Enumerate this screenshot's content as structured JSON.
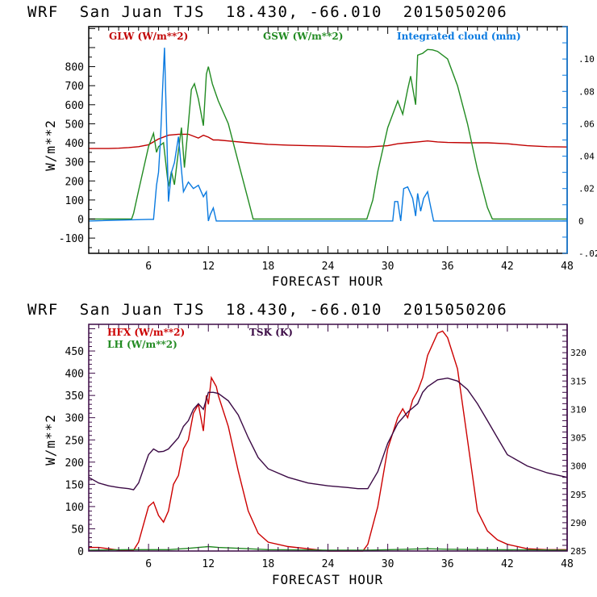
{
  "titles": [
    "WRF  San Juan TJS  18.430, -66.010  2015050206",
    "WRF  San Juan TJS  18.430, -66.010  2015050206"
  ],
  "chart_data": [
    {
      "type": "line",
      "title": "WRF  San Juan TJS  18.430, -66.010  2015050206",
      "xlabel": "FORECAST HOUR",
      "ylabel": "W/m**2",
      "xlim": [
        0,
        48
      ],
      "ylim": [
        -180,
        1010
      ],
      "xticks": [
        6,
        12,
        18,
        24,
        30,
        36,
        42,
        48
      ],
      "yticks": [
        -100,
        0,
        100,
        200,
        300,
        400,
        500,
        600,
        700,
        800
      ],
      "y2label": "",
      "y2lim": [
        -0.02,
        0.12
      ],
      "y2ticks": [
        ".10",
        ".08",
        ".06",
        ".04",
        ".02",
        "0",
        "-.02"
      ],
      "y2tick_values": [
        0.1,
        0.08,
        0.06,
        0.04,
        0.02,
        0,
        -0.02
      ],
      "axis_color": "#0a7ae0",
      "series": [
        {
          "name": "GLW (W/m**2)",
          "color": "#c00000",
          "axis": "left",
          "x": [
            0,
            2,
            3,
            4,
            5,
            6,
            7,
            8,
            9,
            10,
            11,
            11.5,
            12,
            12.5,
            13,
            14,
            16,
            18,
            20,
            22,
            24,
            26,
            28,
            30,
            31,
            32,
            33,
            34,
            35,
            36,
            38,
            40,
            42,
            44,
            46,
            48
          ],
          "y": [
            370,
            370,
            372,
            375,
            380,
            390,
            420,
            440,
            445,
            445,
            425,
            440,
            430,
            415,
            415,
            410,
            400,
            392,
            388,
            385,
            383,
            380,
            378,
            385,
            395,
            400,
            405,
            410,
            405,
            402,
            400,
            400,
            395,
            385,
            380,
            378
          ]
        },
        {
          "name": "GSW (W/m**2)",
          "color": "#228b22",
          "axis": "left",
          "x": [
            0,
            4.3,
            4.5,
            5,
            6,
            6.5,
            6.8,
            7,
            7.5,
            8,
            8.3,
            8.6,
            9,
            9.3,
            9.6,
            10,
            10.3,
            10.6,
            11,
            11.5,
            11.8,
            12,
            12.4,
            12.8,
            13,
            14,
            15,
            16,
            16.5,
            17,
            27.9,
            28.5,
            29,
            30,
            31,
            31.5,
            32,
            32.3,
            32.8,
            33,
            33.5,
            34,
            34.5,
            35,
            36,
            37,
            38,
            39,
            40,
            40.5,
            48
          ],
          "y": [
            0,
            0,
            30,
            150,
            380,
            450,
            350,
            380,
            400,
            170,
            250,
            180,
            360,
            480,
            270,
            500,
            680,
            710,
            630,
            490,
            760,
            800,
            710,
            650,
            620,
            500,
            300,
            100,
            0,
            0,
            0,
            100,
            250,
            480,
            620,
            550,
            680,
            750,
            600,
            860,
            870,
            890,
            888,
            880,
            840,
            700,
            500,
            260,
            60,
            0,
            0
          ]
        },
        {
          "name": "Integrated cloud (mm)",
          "color": "#0a7ae0",
          "axis": "right",
          "x": [
            0,
            6,
            6.5,
            6.8,
            7,
            7.2,
            7.4,
            7.6,
            7.8,
            8,
            8.3,
            8.6,
            9,
            9.5,
            10,
            10.5,
            11,
            11.5,
            11.8,
            12,
            12.2,
            12.5,
            12.8,
            13,
            30.5,
            30.7,
            31,
            31.3,
            31.6,
            32,
            32.5,
            32.8,
            33,
            33.3,
            33.6,
            34,
            34.3,
            34.6,
            35,
            48
          ],
          "y": [
            0,
            0.001,
            0.001,
            0.022,
            0.03,
            0.05,
            0.08,
            0.107,
            0.06,
            0.012,
            0.03,
            0.036,
            0.052,
            0.018,
            0.024,
            0.02,
            0.022,
            0.015,
            0.018,
            0,
            0.004,
            0.008,
            0,
            0,
            0,
            0.012,
            0.012,
            0,
            0.02,
            0.021,
            0.014,
            0.003,
            0.017,
            0.006,
            0.014,
            0.018,
            0.009,
            0.0,
            0,
            0
          ]
        }
      ],
      "legend_location": "top"
    },
    {
      "type": "line",
      "title": "WRF  San Juan TJS  18.430, -66.010  2015050206",
      "xlabel": "FORECAST HOUR",
      "ylabel": "W/m**2",
      "xlim": [
        0,
        48
      ],
      "ylim": [
        0,
        510
      ],
      "xticks": [
        6,
        12,
        18,
        24,
        30,
        36,
        42,
        48
      ],
      "yticks": [
        0,
        50,
        100,
        150,
        200,
        250,
        300,
        350,
        400,
        450
      ],
      "y2label": "",
      "y2lim": [
        285,
        325
      ],
      "y2ticks": [
        "320",
        "315",
        "310",
        "305",
        "300",
        "295",
        "290",
        "285"
      ],
      "y2tick_values": [
        320,
        315,
        310,
        305,
        300,
        295,
        290,
        285
      ],
      "axis_color": "#3b0a45",
      "series": [
        {
          "name": "HFX (W/m**2)",
          "color": "#cc0000",
          "axis": "left",
          "x": [
            0,
            1,
            2,
            3,
            4.5,
            5,
            6,
            6.5,
            7,
            7.5,
            8,
            8.5,
            9,
            9.5,
            10,
            10.5,
            11,
            11.5,
            11.8,
            12,
            12.3,
            12.8,
            13,
            14,
            15,
            16,
            17,
            18,
            20,
            22,
            24,
            26,
            27.5,
            28,
            29,
            30,
            31,
            31.5,
            32,
            32.5,
            33,
            33.5,
            34,
            35,
            35.5,
            36,
            37,
            38,
            39,
            40,
            41,
            42,
            44,
            46,
            48
          ],
          "y": [
            8,
            8,
            5,
            2,
            2,
            20,
            100,
            110,
            80,
            65,
            90,
            150,
            170,
            230,
            250,
            310,
            330,
            270,
            350,
            330,
            390,
            370,
            350,
            280,
            180,
            90,
            40,
            20,
            10,
            5,
            0,
            0,
            0,
            15,
            100,
            230,
            300,
            320,
            300,
            340,
            360,
            390,
            440,
            490,
            495,
            480,
            410,
            250,
            90,
            45,
            25,
            15,
            5,
            3,
            3
          ]
        },
        {
          "name": "LH (W/m**2)",
          "color": "#228b22",
          "axis": "left",
          "x": [
            0,
            4,
            6,
            8,
            10,
            11,
            12,
            13,
            14,
            16,
            18,
            24,
            28,
            32,
            34,
            36,
            40,
            48
          ],
          "y": [
            2,
            3,
            3,
            3,
            6,
            8,
            10,
            8,
            7,
            5,
            3,
            2,
            2,
            4,
            5,
            4,
            3,
            2
          ]
        },
        {
          "name": "TSK (K)",
          "color": "#3b0a45",
          "axis": "right",
          "x": [
            0,
            1,
            2,
            3,
            4,
            4.5,
            5,
            6,
            6.5,
            7,
            7.5,
            8,
            9,
            9.5,
            10,
            10.5,
            11,
            11.5,
            12,
            12.5,
            13,
            14,
            15,
            16,
            17,
            18,
            20,
            22,
            24,
            26,
            27,
            28,
            29,
            30,
            31,
            32,
            33,
            33.5,
            34,
            35,
            36,
            37,
            38,
            39,
            40,
            41,
            42,
            44,
            46,
            48
          ],
          "y": [
            298,
            297,
            296.5,
            296.2,
            296,
            295.8,
            297,
            302,
            303,
            302.5,
            302.6,
            303,
            305,
            307,
            308,
            310,
            311,
            310,
            313,
            313,
            312.8,
            311.5,
            309,
            305,
            301.5,
            299.5,
            298,
            297,
            296.5,
            296.2,
            296,
            296,
            299,
            304,
            307.5,
            309.5,
            311,
            313,
            314,
            315.2,
            315.5,
            315,
            313.5,
            311,
            308,
            305,
            302,
            300,
            298.8,
            298
          ]
        }
      ],
      "legend_location": "top"
    }
  ],
  "legend": {
    "top": [
      "GLW (W/m**2)",
      "GSW (W/m**2)",
      "Integrated cloud (mm)"
    ],
    "bottom": [
      "HFX (W/m**2)",
      "LH  (W/m**2)",
      "TSK (K)"
    ]
  },
  "axis_labels": {
    "x": "FORECAST HOUR",
    "y": "W/m**2"
  }
}
